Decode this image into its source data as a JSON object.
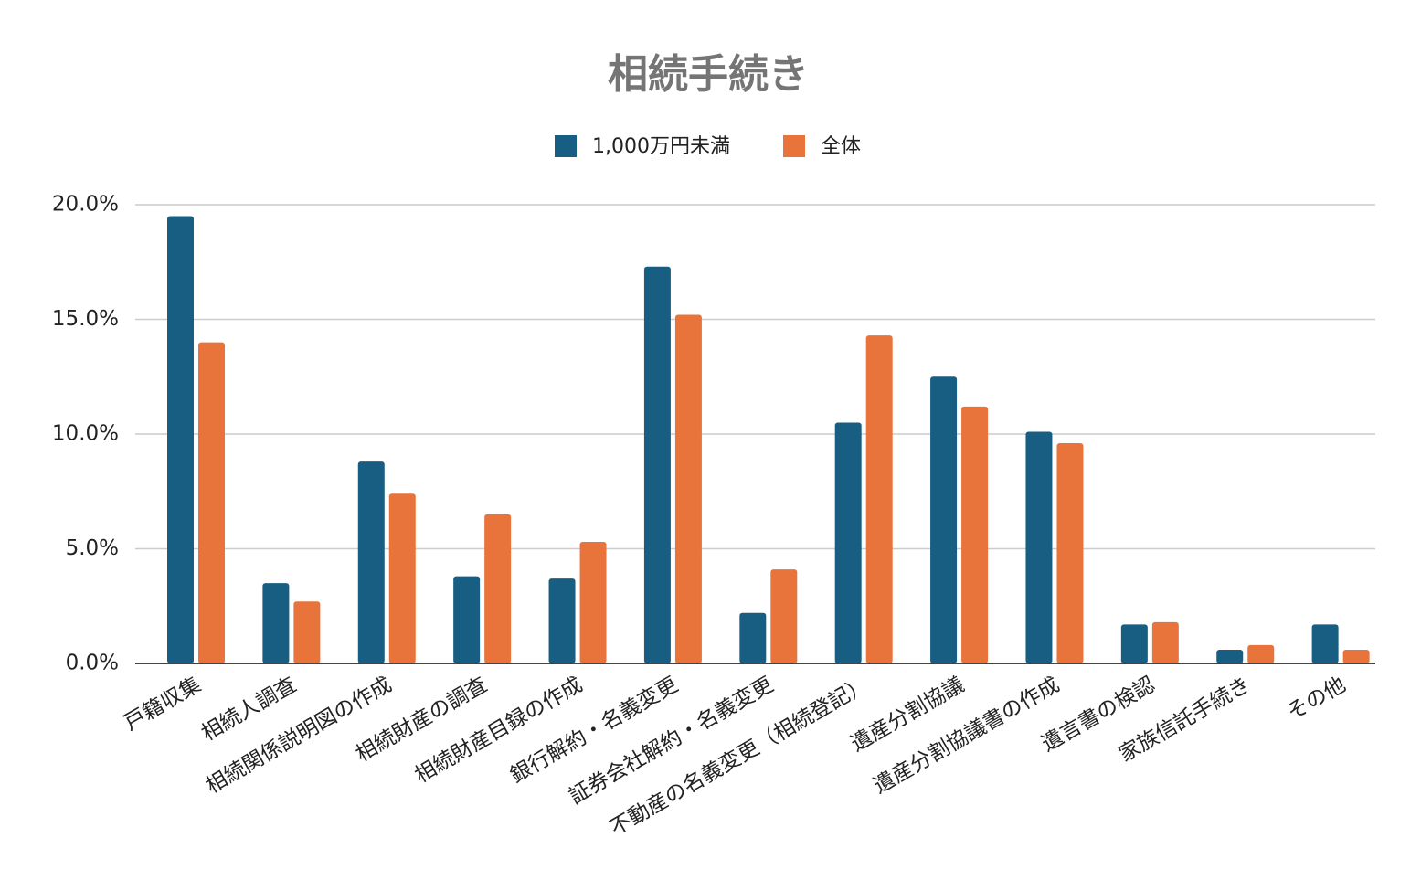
{
  "chart_data": {
    "type": "bar",
    "title": "相続手続き",
    "categories": [
      "戸籍収集",
      "相続人調査",
      "相続関係説明図の作成",
      "相続財産の調査",
      "相続財産目録の作成",
      "銀行解約・名義変更",
      "証券会社解約・名義変更",
      "不動産の名義変更（相続登記）",
      "遺産分割協議",
      "遺産分割協議書の作成",
      "遺言書の検認",
      "家族信託手続き",
      "その他"
    ],
    "series": [
      {
        "name": "1,000万円未満",
        "color": "#175e82",
        "values": [
          19.5,
          3.5,
          8.8,
          3.8,
          3.7,
          17.3,
          2.2,
          10.5,
          12.5,
          10.1,
          1.7,
          0.6,
          1.7
        ]
      },
      {
        "name": "全体",
        "color": "#e8743b",
        "values": [
          14.0,
          2.7,
          7.4,
          6.5,
          5.3,
          15.2,
          4.1,
          14.3,
          11.2,
          9.6,
          1.8,
          0.8,
          0.6
        ]
      }
    ],
    "ylim": [
      0,
      20
    ],
    "yticks": [
      {
        "value": 0,
        "label": "0.0%"
      },
      {
        "value": 5,
        "label": "5.0%"
      },
      {
        "value": 10,
        "label": "10.0%"
      },
      {
        "value": 15,
        "label": "15.0%"
      },
      {
        "value": 20,
        "label": "20.0%"
      }
    ],
    "grid": true,
    "legend": "top"
  }
}
